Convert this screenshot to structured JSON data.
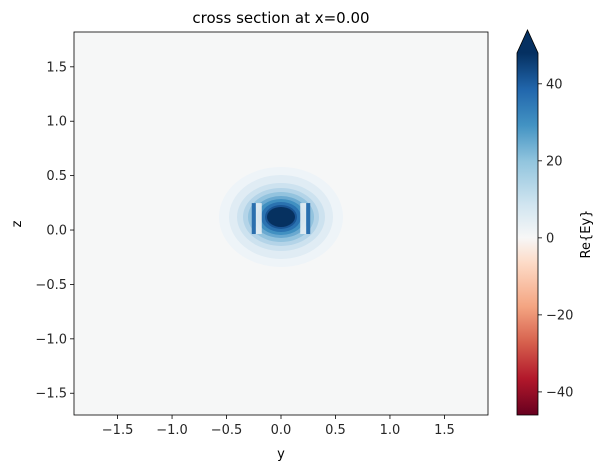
{
  "chart_data": {
    "type": "heatmap",
    "title": "cross section at x=0.00",
    "xlabel": "y",
    "ylabel": "z",
    "xlim": [
      -1.9,
      1.9
    ],
    "ylim": [
      -1.7,
      1.82
    ],
    "x_ticks": [
      -1.5,
      -1.0,
      -0.5,
      0.0,
      0.5,
      1.0,
      1.5
    ],
    "x_tick_labels": [
      "−1.5",
      "−1.0",
      "−0.5",
      "0.0",
      "0.5",
      "1.0",
      "1.5"
    ],
    "y_ticks": [
      -1.5,
      -1.0,
      -0.5,
      0.0,
      0.5,
      1.0,
      1.5
    ],
    "y_tick_labels": [
      "−1.5",
      "−1.0",
      "−0.5",
      "0.0",
      "0.5",
      "1.0",
      "1.5"
    ],
    "colorbar": {
      "label": "Re{Ey}",
      "colormap": "RdBu",
      "vmin": -46,
      "vmax": 48,
      "extend": "max",
      "ticks": [
        -40,
        -20,
        0,
        20,
        40
      ],
      "tick_labels": [
        "−40",
        "−20",
        "0",
        "20",
        "40"
      ]
    },
    "field": {
      "description_free": true,
      "peak_center": [
        0.0,
        0.12
      ],
      "peak_value": 48,
      "background_value": 1.5,
      "guide_y_range": [
        -0.25,
        0.25
      ],
      "guide_z_range": [
        0.0,
        0.22
      ]
    }
  }
}
